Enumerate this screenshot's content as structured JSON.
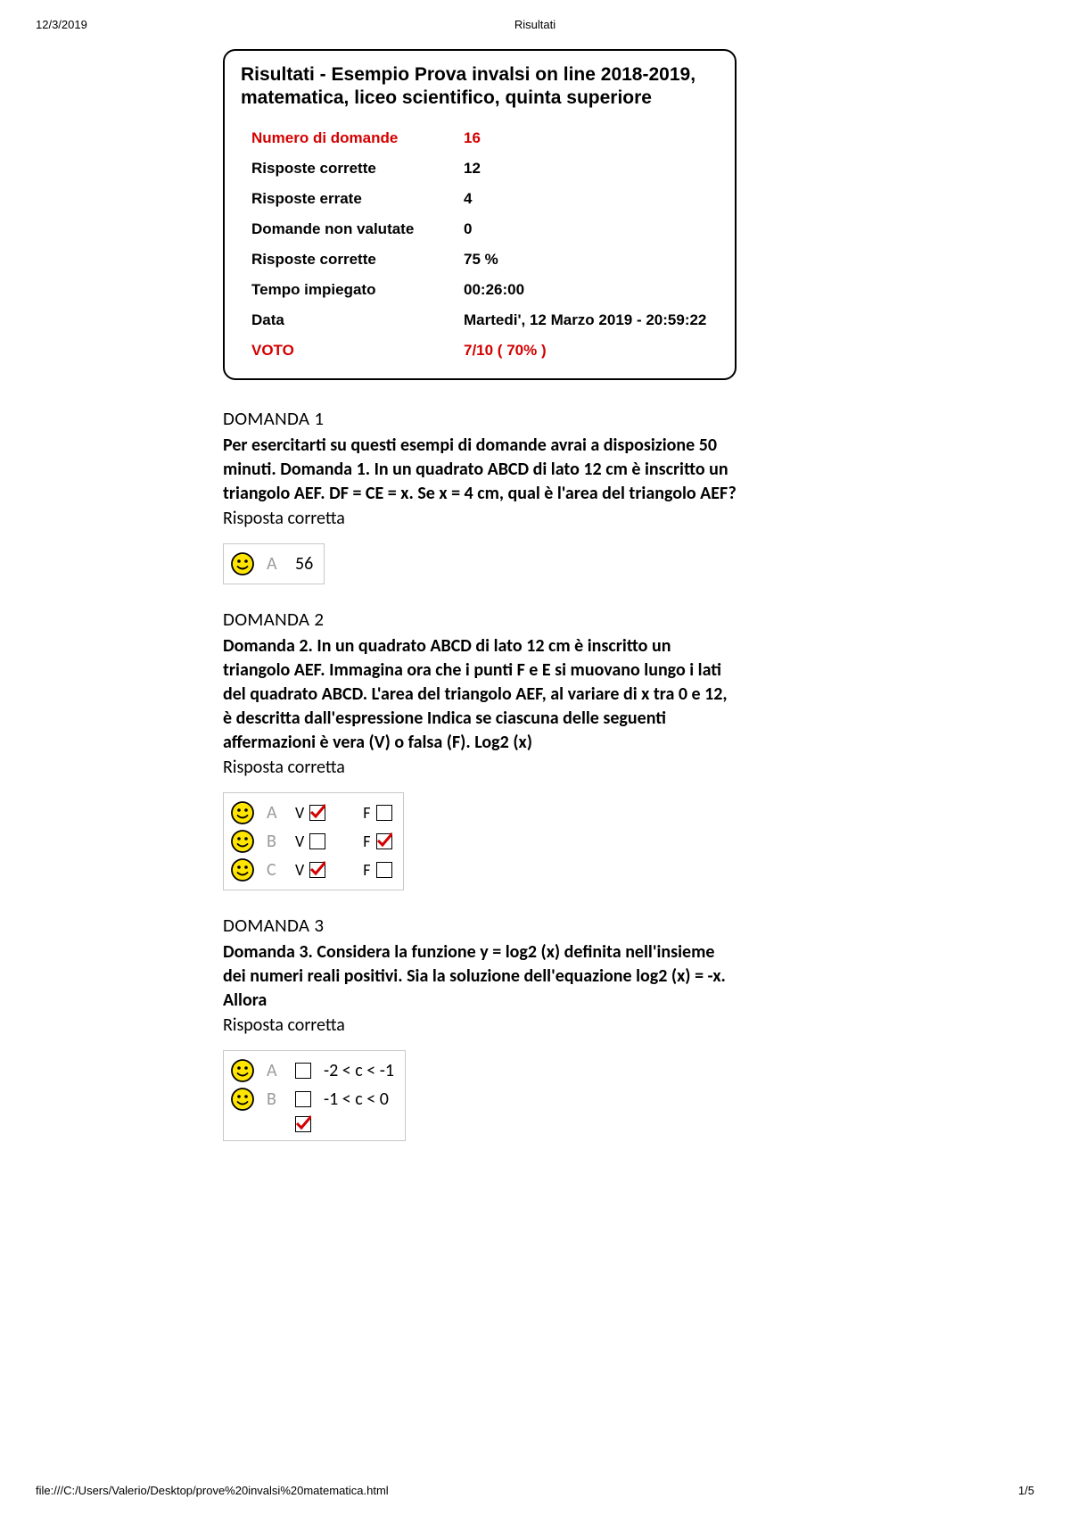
{
  "header": {
    "date": "12/3/2019",
    "title": "Risultati"
  },
  "results": {
    "title": "Risultati - Esempio Prova invalsi on line 2018-2019, matematica, liceo scientifico, quinta superiore",
    "rows": [
      {
        "label": "Numero di domande",
        "value": "16",
        "red": true
      },
      {
        "label": "Risposte corrette",
        "value": "12",
        "red": false
      },
      {
        "label": "Risposte errate",
        "value": "4",
        "red": false
      },
      {
        "label": "Domande non valutate",
        "value": "0",
        "red": false
      },
      {
        "label": "Risposte corrette",
        "value": "75 %",
        "red": false
      },
      {
        "label": "Tempo impiegato",
        "value": "00:26:00",
        "red": false
      },
      {
        "label": "Data",
        "value": "Martedi', 12 Marzo 2019 - 20:59:22",
        "red": false
      },
      {
        "label": "VOTO",
        "value": "7/10 ( 70% )",
        "red": true
      }
    ]
  },
  "q1": {
    "heading": "DOMANDA 1",
    "text": "Per esercitarti su questi esempi di domande avrai a disposizione 50 minuti. Domanda 1. In un quadrato ABCD di lato 12 cm è inscritto un triangolo AEF. DF = CE = x. Se x = 4 cm, qual è l'area del triangolo AEF?",
    "status": "Risposta corretta",
    "opt_letter": "A",
    "opt_value": "56"
  },
  "q2": {
    "heading": "DOMANDA 2",
    "text": "Domanda 2. In un quadrato ABCD di lato 12 cm è inscritto un triangolo AEF. Immagina ora che i punti F e E si muovano lungo i lati del quadrato ABCD. L'area del triangolo AEF, al variare di x tra 0 e 12, è descritta dall'espressione Indica se ciascuna delle seguenti affermazioni è vera (V) o falsa (F). Log2 (x)",
    "status": "Risposta corretta",
    "rows": [
      {
        "letter": "A",
        "v_checked": true,
        "f_checked": false
      },
      {
        "letter": "B",
        "v_checked": false,
        "f_checked": true
      },
      {
        "letter": "C",
        "v_checked": true,
        "f_checked": false
      }
    ],
    "v_label": "V",
    "f_label": "F"
  },
  "q3": {
    "heading": "DOMANDA 3",
    "text": "Domanda 3. Considera la funzione y = log2 (x) definita nell'insieme dei numeri reali positivi. Sia la soluzione dell'equazione log2 (x) = -x. Allora",
    "status": "Risposta corretta",
    "rows": [
      {
        "letter": "A",
        "checked": false,
        "text": "-2 < c < -1"
      },
      {
        "letter": "B",
        "checked": false,
        "text": "-1 < c < 0"
      }
    ]
  },
  "footer": {
    "path": "file:///C:/Users/Valerio/Desktop/prove%20invalsi%20matematica.html",
    "page": "1/5"
  },
  "colors": {
    "red": "#d40000",
    "gray_letter": "#9a9a9a",
    "box_border": "#c8c8c8",
    "smiley_fill": "#ffe500",
    "smiley_stroke": "#000000"
  }
}
